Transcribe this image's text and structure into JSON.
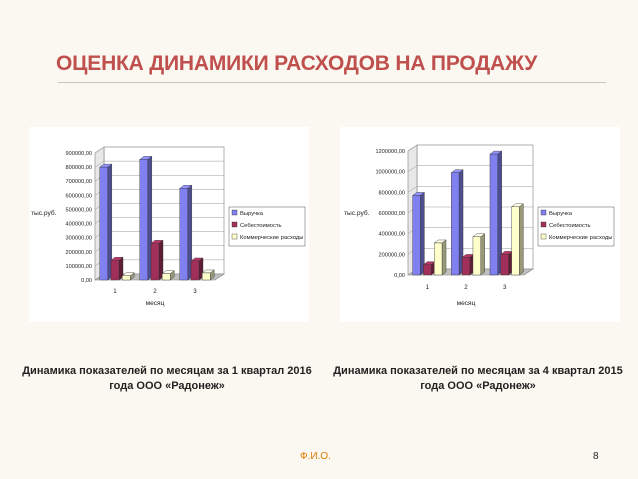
{
  "slide": {
    "title": "ОЦЕНКА ДИНАМИКИ РАСХОДОВ НА ПРОДАЖУ",
    "author": "Ф.И.О.",
    "page_number": "8",
    "accent_color": "#c0504d"
  },
  "captions": {
    "left": "Динамика показателей по месяцам за 1 квартал 2016 года ООО «Радонеж»",
    "right": "Динамика показателей по месяцам за 4 квартал 2015 года ООО «Радонеж»"
  },
  "chart_data": [
    {
      "type": "bar",
      "style": "3d-clustered-column",
      "categories": [
        "1",
        "2",
        "3"
      ],
      "series": [
        {
          "name": "Выручка",
          "values": [
            800000,
            855000,
            650000
          ],
          "color": "#8080f0"
        },
        {
          "name": "Себестоимость",
          "values": [
            140000,
            260000,
            135000
          ],
          "color": "#a0305a"
        },
        {
          "name": "Коммерческие расходы",
          "values": [
            30000,
            45000,
            50000
          ],
          "color": "#ffffcc"
        }
      ],
      "xlabel": "месяц",
      "ylabel": "тыс.руб.",
      "ylim": [
        0,
        900000
      ],
      "yticks": [
        0,
        100000,
        200000,
        300000,
        400000,
        500000,
        600000,
        700000,
        800000,
        900000
      ],
      "ytick_labels": [
        "0,00",
        "100000,00",
        "200000,00",
        "300000,00",
        "400000,00",
        "500000,00",
        "600000,00",
        "700000,00",
        "800000,00",
        "900000,00"
      ],
      "grid": true,
      "legend": "right"
    },
    {
      "type": "bar",
      "style": "3d-clustered-column",
      "categories": [
        "1",
        "2",
        "3"
      ],
      "series": [
        {
          "name": "Выручка",
          "values": [
            770000,
            990000,
            1170000
          ],
          "color": "#8080f0"
        },
        {
          "name": "Себестоимость",
          "values": [
            100000,
            170000,
            200000
          ],
          "color": "#a0305a"
        },
        {
          "name": "Коммерческие расходы",
          "values": [
            310000,
            370000,
            660000
          ],
          "color": "#ffffcc"
        }
      ],
      "xlabel": "месяц",
      "ylabel": "тыс.руб.",
      "ylim": [
        0,
        1200000
      ],
      "yticks": [
        0,
        200000,
        400000,
        600000,
        800000,
        1000000,
        1200000
      ],
      "ytick_labels": [
        "0,00",
        "200000,00",
        "400000,00",
        "600000,00",
        "800000,00",
        "1000000,00",
        "1200000,00"
      ],
      "grid": true,
      "legend": "right"
    }
  ]
}
